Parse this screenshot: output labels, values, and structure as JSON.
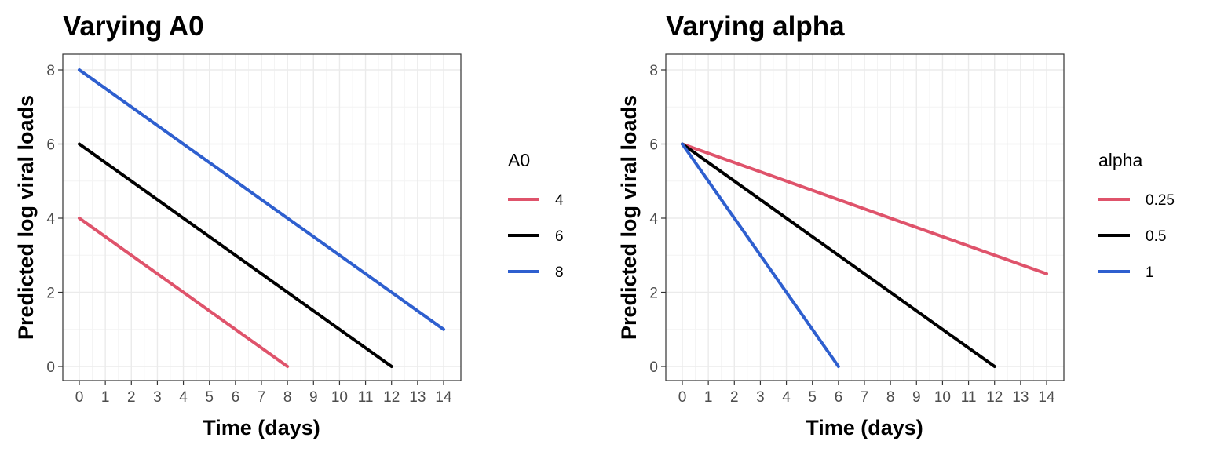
{
  "chart_data": [
    {
      "type": "line",
      "title": "Varying A0",
      "xlabel": "Time (days)",
      "ylabel": "Predicted log viral loads",
      "xlim": [
        0,
        14
      ],
      "ylim": [
        0,
        8
      ],
      "x_ticks": [
        "0",
        "1",
        "2",
        "3",
        "4",
        "5",
        "6",
        "7",
        "8",
        "9",
        "10",
        "11",
        "12",
        "13",
        "14"
      ],
      "y_ticks": [
        "0",
        "2",
        "4",
        "6",
        "8"
      ],
      "grid": true,
      "legend": {
        "title": "A0",
        "position": "right"
      },
      "series": [
        {
          "name": "4",
          "color": "#df536b",
          "points": [
            [
              0,
              4
            ],
            [
              8,
              0
            ]
          ]
        },
        {
          "name": "6",
          "color": "#000000",
          "points": [
            [
              0,
              6
            ],
            [
              12,
              0
            ]
          ]
        },
        {
          "name": "8",
          "color": "#2e5fcf",
          "points": [
            [
              0,
              8
            ],
            [
              14,
              1
            ]
          ]
        }
      ]
    },
    {
      "type": "line",
      "title": "Varying alpha",
      "xlabel": "Time (days)",
      "ylabel": "Predicted log viral loads",
      "xlim": [
        0,
        14
      ],
      "ylim": [
        0,
        8
      ],
      "x_ticks": [
        "0",
        "1",
        "2",
        "3",
        "4",
        "5",
        "6",
        "7",
        "8",
        "9",
        "10",
        "11",
        "12",
        "13",
        "14"
      ],
      "y_ticks": [
        "0",
        "2",
        "4",
        "6",
        "8"
      ],
      "grid": true,
      "legend": {
        "title": "alpha",
        "position": "right"
      },
      "series": [
        {
          "name": "0.25",
          "color": "#df536b",
          "points": [
            [
              0,
              6
            ],
            [
              14,
              2.5
            ]
          ]
        },
        {
          "name": "0.5",
          "color": "#000000",
          "points": [
            [
              0,
              6
            ],
            [
              12,
              0
            ]
          ]
        },
        {
          "name": "1",
          "color": "#2e5fcf",
          "points": [
            [
              0,
              6
            ],
            [
              6,
              0
            ]
          ]
        }
      ]
    }
  ]
}
